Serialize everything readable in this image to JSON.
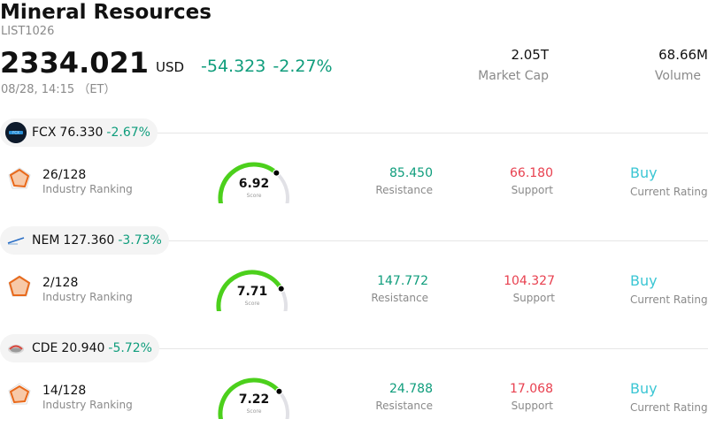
{
  "header": {
    "title": "Mineral Resources",
    "code": "LIST1026",
    "price": "2334.021",
    "currency": "USD",
    "change": "-54.323 -2.27%",
    "time": "08/28, 14:15 （ET）"
  },
  "stats": {
    "market_cap_value": "2.05T",
    "market_cap_label": "Market Cap",
    "volume_value": "68.66M",
    "volume_label": "Volume"
  },
  "rows": [
    {
      "symbol": "FCX",
      "price": "76.330",
      "pct": "-2.67%",
      "rank": "26/128",
      "rank_label": "Industry Ranking",
      "score": "6.92",
      "score_label": "Score",
      "score_fraction": 0.69,
      "resistance": "85.450",
      "resistance_label": "Resistance",
      "support": "66.180",
      "support_label": "Support",
      "rating": "Buy",
      "rating_label": "Current Rating"
    },
    {
      "symbol": "NEM",
      "price": "127.360",
      "pct": "-3.73%",
      "rank": "2/128",
      "rank_label": "Industry Ranking",
      "score": "7.71",
      "score_label": "Score",
      "score_fraction": 0.77,
      "resistance": "147.772",
      "resistance_label": "Resistance",
      "support": "104.327",
      "support_label": "Support",
      "rating": "Buy",
      "rating_label": "Current Rating"
    },
    {
      "symbol": "CDE",
      "price": "20.940",
      "pct": "-5.72%",
      "rank": "14/128",
      "rank_label": "Industry Ranking",
      "score": "7.22",
      "score_label": "Score",
      "score_fraction": 0.72,
      "resistance": "24.788",
      "resistance_label": "Resistance",
      "support": "17.068",
      "support_label": "Support",
      "rating": "Buy",
      "rating_label": "Current Rating"
    }
  ],
  "colors": {
    "up_green": "#0f9d7c",
    "down_red": "#e8404f",
    "rating_cyan": "#3bc6d4",
    "gauge_green": "#4cd01c",
    "gauge_track": "#e1e1e6"
  },
  "icons": {
    "rank": "radar-chart-icon",
    "gauge_marker": "gauge-dot-icon"
  }
}
